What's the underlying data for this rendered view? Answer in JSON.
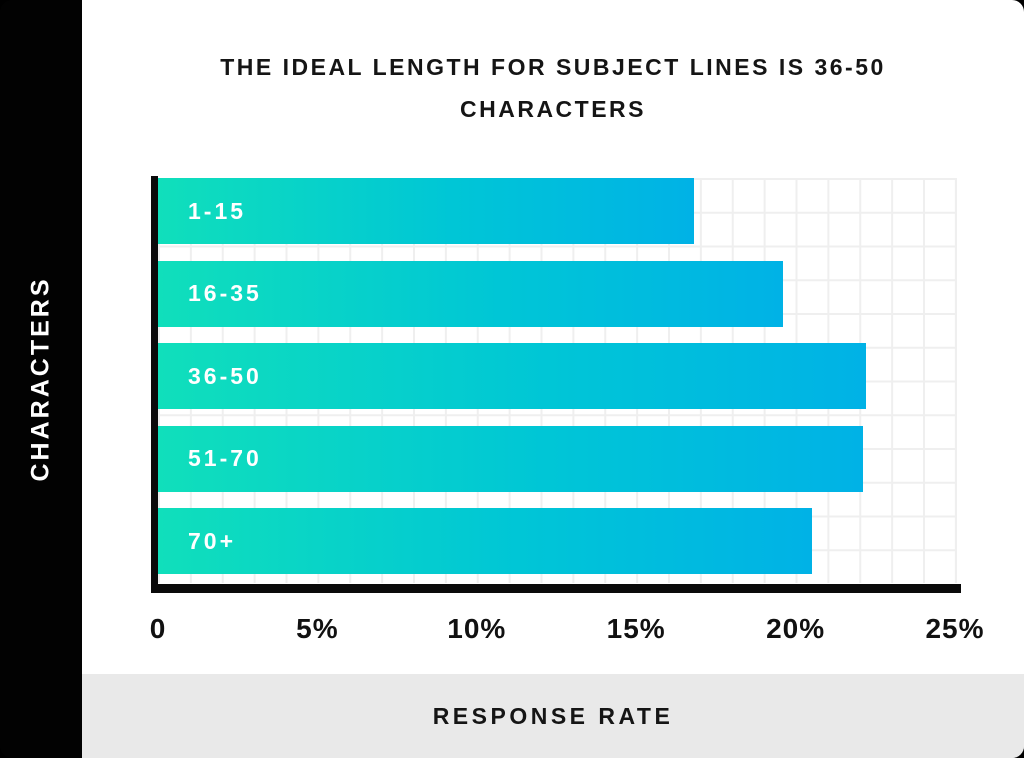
{
  "card": {
    "title_lines": [
      "THE IDEAL LENGTH FOR SUBJECT LINES IS 36-50",
      "CHARACTERS"
    ]
  },
  "colors": {
    "band_background": "#000000",
    "bar_gradient_start": "#10DFBB",
    "bar_gradient_end": "#00B2E6",
    "grid_line": "#EFEFEF",
    "axis_line": "#0A0A0A",
    "footer_background": "#E9E9E9",
    "bar_label_text": "#FFFFFF",
    "title_text": "#151515"
  },
  "chart_data": {
    "type": "bar",
    "orientation": "horizontal",
    "title": "THE IDEAL LENGTH FOR SUBJECT LINES IS 36-50 CHARACTERS",
    "categories": [
      "1-15",
      "16-35",
      "36-50",
      "51-70",
      "70+"
    ],
    "values": [
      16.8,
      19.6,
      22.2,
      22.1,
      20.5
    ],
    "unit": "%",
    "xlabel": "RESPONSE RATE",
    "ylabel": "CHARACTERS",
    "xlim": [
      0,
      25
    ],
    "x_ticks": [
      "0",
      "5%",
      "10%",
      "15%",
      "20%",
      "25%"
    ],
    "grid": true,
    "grid_step_percent": 1,
    "legend": "none"
  }
}
